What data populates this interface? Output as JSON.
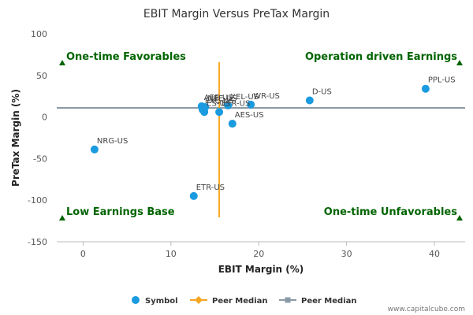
{
  "chart_data": {
    "type": "scatter",
    "title": "EBIT Margin Versus PreTax Margin",
    "xlabel": "EBIT Margin (%)",
    "ylabel": "PreTax Margin (%)",
    "xlim": [
      -3,
      43.5
    ],
    "ylim": [
      -150,
      100
    ],
    "xticks": [
      0,
      10,
      20,
      30,
      40
    ],
    "yticks": [
      -150,
      -100,
      -50,
      0,
      50,
      100
    ],
    "grid": false,
    "legend_position": "bottom",
    "points": [
      {
        "label": "PPL-US",
        "x": 39.0,
        "y": 34
      },
      {
        "label": "D-US",
        "x": 25.8,
        "y": 20
      },
      {
        "label": "XEL-US",
        "x": 16.5,
        "y": 14
      },
      {
        "label": "WR-US",
        "x": 19.1,
        "y": 15
      },
      {
        "label": "AEE-US",
        "x": 13.5,
        "y": 13
      },
      {
        "label": "NEE-US",
        "x": 13.9,
        "y": 12
      },
      {
        "label": "EXC-US",
        "x": 13.6,
        "y": 9
      },
      {
        "label": "ES-US",
        "x": 13.8,
        "y": 6
      },
      {
        "label": "ETR-US",
        "x": 15.5,
        "y": 6
      },
      {
        "label": "AES-US",
        "x": 17.0,
        "y": -8
      },
      {
        "label": "NRG-US",
        "x": 1.3,
        "y": -39
      },
      {
        "label": "ETR-US",
        "x": 12.6,
        "y": -95
      }
    ],
    "peer_median_x": 15.5,
    "peer_median_y": 11,
    "quadrants": {
      "top_left": "One-time Favorables",
      "top_right": "Operation driven Earnings",
      "bottom_left": "Low Earnings Base",
      "bottom_right": "One-time Unfavorables"
    },
    "legend": [
      {
        "label": "Symbol",
        "color": "#1a9be0"
      },
      {
        "label": "Peer Median",
        "color": "#f5a623"
      },
      {
        "label": "Peer Median",
        "color": "#8a99a6"
      }
    ],
    "colors": {
      "points": "#1a9be0",
      "median_x_line": "#f5a623",
      "median_y_line": "#8a99a6",
      "quadrant_marker": "#006400"
    },
    "credit": "www.capitalcube.com"
  }
}
